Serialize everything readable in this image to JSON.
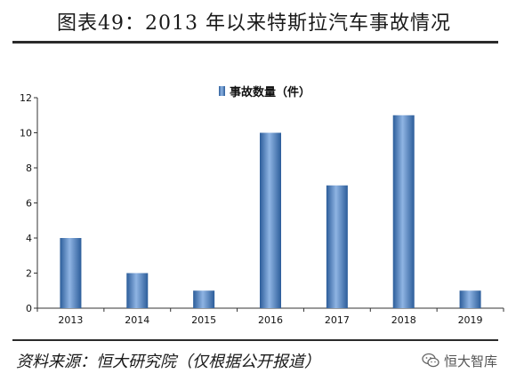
{
  "header": {
    "title": "图表49：2013 年以来特斯拉汽车事故情况"
  },
  "footer": {
    "source": "资料来源：恒大研究院（仅根据公开报道）",
    "watermark": "恒大智库",
    "watermark_icon": "wechat-icon"
  },
  "chart_data": {
    "type": "bar",
    "categories": [
      "2013",
      "2014",
      "2015",
      "2016",
      "2017",
      "2018",
      "2019"
    ],
    "series": [
      {
        "name": "事故数量（件）",
        "values": [
          4,
          2,
          1,
          10,
          7,
          11,
          1
        ],
        "color": "#4f81bd"
      }
    ],
    "yticks": [
      "0",
      "2",
      "4",
      "6",
      "8",
      "10",
      "12"
    ],
    "ylim": [
      0,
      12
    ],
    "grid": false,
    "legend_position": "top-center"
  }
}
